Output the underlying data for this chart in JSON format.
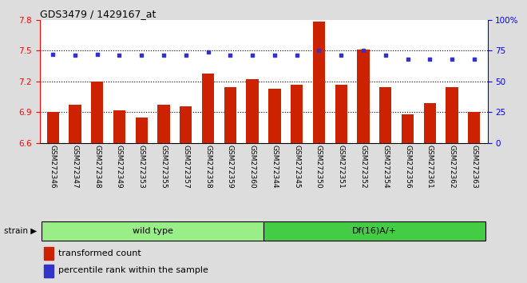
{
  "title": "GDS3479 / 1429167_at",
  "samples": [
    "GSM272346",
    "GSM272347",
    "GSM272348",
    "GSM272349",
    "GSM272353",
    "GSM272355",
    "GSM272357",
    "GSM272358",
    "GSM272359",
    "GSM272360",
    "GSM272344",
    "GSM272345",
    "GSM272350",
    "GSM272351",
    "GSM272352",
    "GSM272354",
    "GSM272356",
    "GSM272361",
    "GSM272362",
    "GSM272363"
  ],
  "bar_values": [
    6.9,
    6.97,
    7.2,
    6.92,
    6.85,
    6.97,
    6.96,
    7.28,
    7.14,
    7.22,
    7.13,
    7.17,
    7.78,
    7.17,
    7.51,
    7.14,
    6.88,
    6.99,
    7.14,
    6.9
  ],
  "dot_values": [
    72,
    71,
    72,
    71,
    71,
    71,
    71,
    74,
    71,
    71,
    71,
    71,
    75,
    71,
    75,
    71,
    68,
    68,
    68,
    68
  ],
  "ylim_left": [
    6.6,
    7.8
  ],
  "ylim_right": [
    0,
    100
  ],
  "yticks_left": [
    6.6,
    6.9,
    7.2,
    7.5,
    7.8
  ],
  "yticks_right": [
    0,
    25,
    50,
    75,
    100
  ],
  "ytick_labels_right": [
    "0",
    "25",
    "50",
    "75",
    "100%"
  ],
  "hlines": [
    6.9,
    7.2,
    7.5
  ],
  "bar_color": "#CC2200",
  "dot_color": "#3333CC",
  "wild_type_count": 10,
  "group_labels": [
    "wild type",
    "Df(16)A/+"
  ],
  "group_color_wt": "#99EE88",
  "group_color_df": "#44CC44",
  "strain_label": "strain",
  "legend_bar_label": "transformed count",
  "legend_dot_label": "percentile rank within the sample",
  "background_color": "#DDDDDD",
  "plot_bg": "#FFFFFF"
}
